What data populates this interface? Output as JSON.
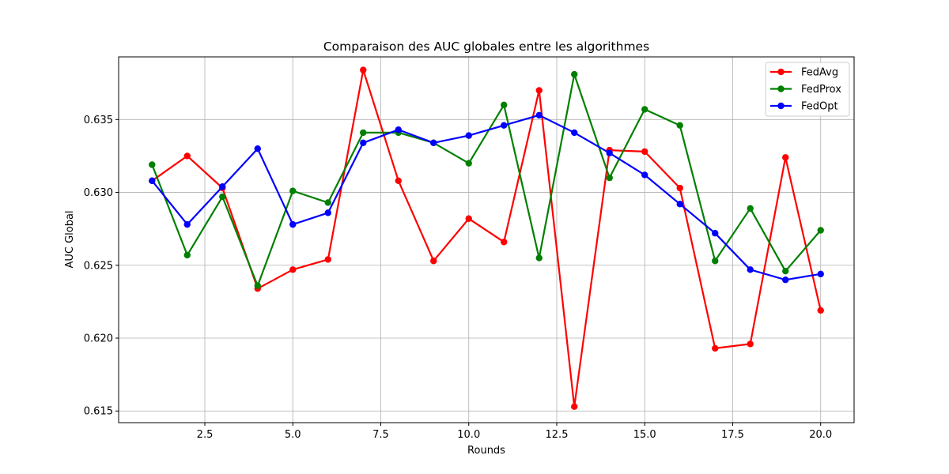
{
  "chart_data": {
    "type": "line",
    "title": "Comparaison des AUC globales entre les algorithmes",
    "xlabel": "Rounds",
    "ylabel": "AUC Global",
    "xlim": [
      0.05,
      20.95
    ],
    "ylim": [
      0.6142,
      0.6393
    ],
    "xticks": [
      2.5,
      5.0,
      7.5,
      10.0,
      12.5,
      15.0,
      17.5,
      20.0
    ],
    "xtick_labels": [
      "2.5",
      "5.0",
      "7.5",
      "10.0",
      "12.5",
      "15.0",
      "17.5",
      "20.0"
    ],
    "yticks": [
      0.615,
      0.62,
      0.625,
      0.63,
      0.635
    ],
    "ytick_labels": [
      "0.615",
      "0.620",
      "0.625",
      "0.630",
      "0.635"
    ],
    "grid": true,
    "legend_position": "top-right",
    "x": [
      1,
      2,
      3,
      4,
      5,
      6,
      7,
      8,
      9,
      10,
      11,
      12,
      13,
      14,
      15,
      16,
      17,
      18,
      19,
      20
    ],
    "series": [
      {
        "name": "FedAvg",
        "color": "#ff0000",
        "values": [
          0.6308,
          0.6325,
          0.6303,
          0.6234,
          0.6247,
          0.6254,
          0.6384,
          0.6308,
          0.6253,
          0.6282,
          0.6266,
          0.637,
          0.6153,
          0.6329,
          0.6328,
          0.6303,
          0.6193,
          0.6196,
          0.6324,
          0.6219
        ]
      },
      {
        "name": "FedProx",
        "color": "#008000",
        "values": [
          0.6319,
          0.6257,
          0.6297,
          0.6236,
          0.6301,
          0.6293,
          0.6341,
          0.6341,
          0.6334,
          0.632,
          0.636,
          0.6255,
          0.6381,
          0.631,
          0.6357,
          0.6346,
          0.6253,
          0.6289,
          0.6246,
          0.6274
        ]
      },
      {
        "name": "FedOpt",
        "color": "#0000ff",
        "values": [
          0.6308,
          0.6278,
          0.6304,
          0.633,
          0.6278,
          0.6286,
          0.6334,
          0.6343,
          0.6334,
          0.6339,
          0.6346,
          0.6353,
          0.6341,
          0.6327,
          0.6312,
          0.6292,
          0.6272,
          0.6247,
          0.624,
          0.6244
        ]
      }
    ]
  }
}
